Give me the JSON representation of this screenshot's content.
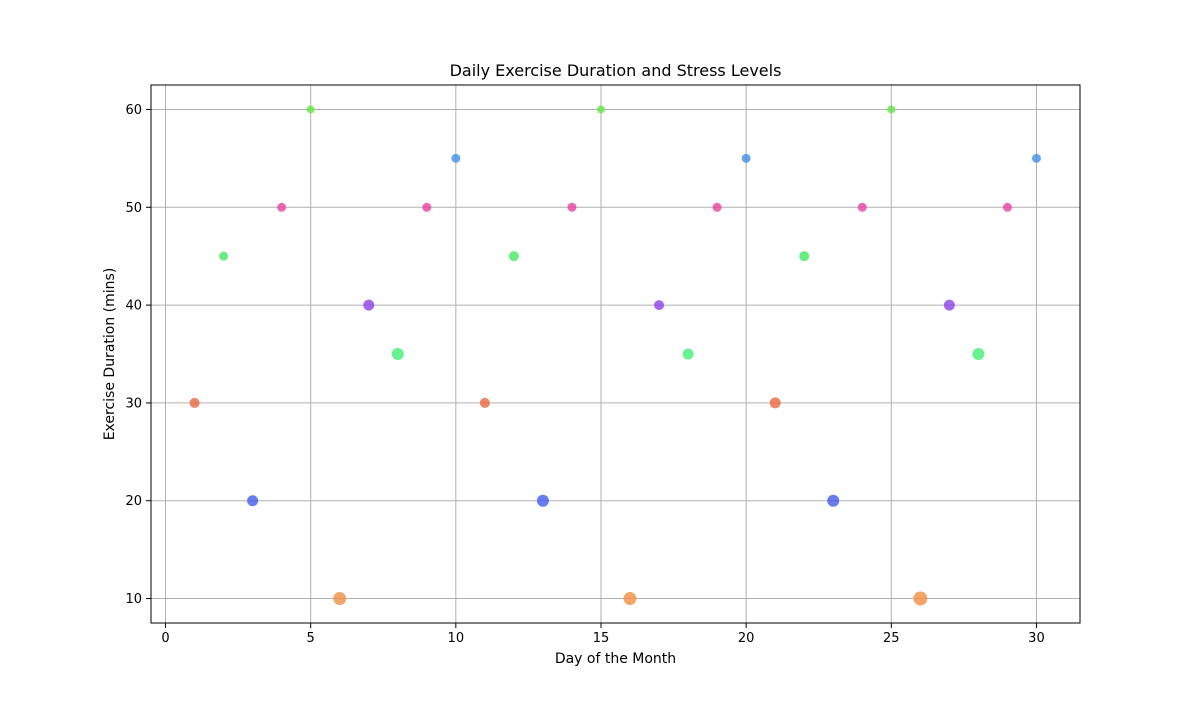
{
  "chart_data": {
    "type": "scatter",
    "title": "Daily Exercise Duration and Stress Levels",
    "xlabel": "Day of the Month",
    "ylabel": "Exercise Duration (mins)",
    "xlim": [
      -0.5,
      31.5
    ],
    "ylim": [
      7.5,
      62.5
    ],
    "xticks": [
      0,
      5,
      10,
      15,
      20,
      25,
      30
    ],
    "yticks": [
      10,
      20,
      30,
      40,
      50,
      60
    ],
    "grid": true,
    "points": [
      {
        "x": 1,
        "y": 30,
        "color": "#e8643c",
        "size": 5.0
      },
      {
        "x": 2,
        "y": 45,
        "color": "#3ee85a",
        "size": 4.5
      },
      {
        "x": 3,
        "y": 20,
        "color": "#3c58e8",
        "size": 5.5
      },
      {
        "x": 4,
        "y": 50,
        "color": "#e83ca0",
        "size": 4.5
      },
      {
        "x": 5,
        "y": 60,
        "color": "#5ee83c",
        "size": 4.0
      },
      {
        "x": 6,
        "y": 10,
        "color": "#f08c40",
        "size": 6.5
      },
      {
        "x": 7,
        "y": 40,
        "color": "#8c3ce8",
        "size": 5.5
      },
      {
        "x": 8,
        "y": 35,
        "color": "#3cf070",
        "size": 6.0
      },
      {
        "x": 9,
        "y": 50,
        "color": "#e83ca0",
        "size": 4.5
      },
      {
        "x": 10,
        "y": 55,
        "color": "#3c8ce8",
        "size": 4.5
      },
      {
        "x": 11,
        "y": 30,
        "color": "#e8643c",
        "size": 5.0
      },
      {
        "x": 12,
        "y": 45,
        "color": "#3ee85a",
        "size": 5.0
      },
      {
        "x": 13,
        "y": 20,
        "color": "#3c58e8",
        "size": 6.0
      },
      {
        "x": 14,
        "y": 50,
        "color": "#e83ca0",
        "size": 4.5
      },
      {
        "x": 15,
        "y": 60,
        "color": "#5ee83c",
        "size": 4.0
      },
      {
        "x": 16,
        "y": 10,
        "color": "#f08c40",
        "size": 6.5
      },
      {
        "x": 17,
        "y": 40,
        "color": "#8c3ce8",
        "size": 5.0
      },
      {
        "x": 18,
        "y": 35,
        "color": "#3cf070",
        "size": 5.5
      },
      {
        "x": 19,
        "y": 50,
        "color": "#e83ca0",
        "size": 4.5
      },
      {
        "x": 20,
        "y": 55,
        "color": "#3c8ce8",
        "size": 4.5
      },
      {
        "x": 21,
        "y": 30,
        "color": "#e8643c",
        "size": 5.5
      },
      {
        "x": 22,
        "y": 45,
        "color": "#3ee85a",
        "size": 5.0
      },
      {
        "x": 23,
        "y": 20,
        "color": "#3c58e8",
        "size": 6.0
      },
      {
        "x": 24,
        "y": 50,
        "color": "#e83ca0",
        "size": 4.5
      },
      {
        "x": 25,
        "y": 60,
        "color": "#5ee83c",
        "size": 4.0
      },
      {
        "x": 26,
        "y": 10,
        "color": "#f08c40",
        "size": 7.0
      },
      {
        "x": 27,
        "y": 40,
        "color": "#8c3ce8",
        "size": 5.5
      },
      {
        "x": 28,
        "y": 35,
        "color": "#3cf070",
        "size": 6.0
      },
      {
        "x": 29,
        "y": 50,
        "color": "#e83ca0",
        "size": 4.5
      },
      {
        "x": 30,
        "y": 55,
        "color": "#3c8ce8",
        "size": 4.5
      }
    ]
  }
}
